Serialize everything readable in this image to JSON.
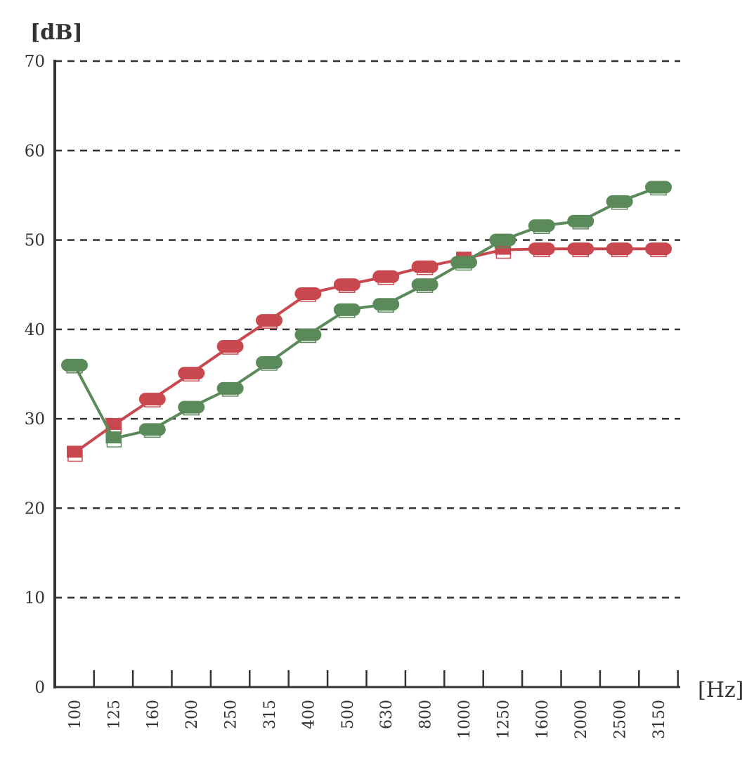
{
  "chart_data": {
    "type": "line",
    "ylabel": "[dB]",
    "xlabel": "[Hz]",
    "categories": [
      "100",
      "125",
      "160",
      "200",
      "250",
      "315",
      "400",
      "500",
      "630",
      "800",
      "1000",
      "1250",
      "1600",
      "2000",
      "2500",
      "3150"
    ],
    "ylim": [
      0,
      70
    ],
    "yticks": [
      0,
      10,
      20,
      30,
      40,
      50,
      60,
      70
    ],
    "grid": "horizontal-dashed",
    "series": [
      {
        "color": "#c9474f",
        "values": [
          26.2,
          29.3,
          32.2,
          35.1,
          38.1,
          41.0,
          44.0,
          45.0,
          45.9,
          47.0,
          47.9,
          48.9,
          49.0,
          49.0,
          49.0,
          49.0
        ],
        "markers": [
          "square",
          "square",
          "circle",
          "circle",
          "circle",
          "circle",
          "circle",
          "circle",
          "circle",
          "circle",
          "square",
          "square",
          "circle",
          "circle",
          "circle",
          "circle"
        ]
      },
      {
        "color": "#5b8a5a",
        "values": [
          36.0,
          27.8,
          28.8,
          31.3,
          33.4,
          36.3,
          39.4,
          42.2,
          42.8,
          45.0,
          47.5,
          50.0,
          51.6,
          52.1,
          54.3,
          55.9
        ],
        "markers": [
          "circle",
          "square",
          "circle",
          "circle",
          "circle",
          "circle",
          "circle",
          "circle",
          "circle",
          "circle",
          "circle",
          "circle",
          "circle",
          "circle",
          "circle",
          "circle"
        ]
      }
    ]
  }
}
